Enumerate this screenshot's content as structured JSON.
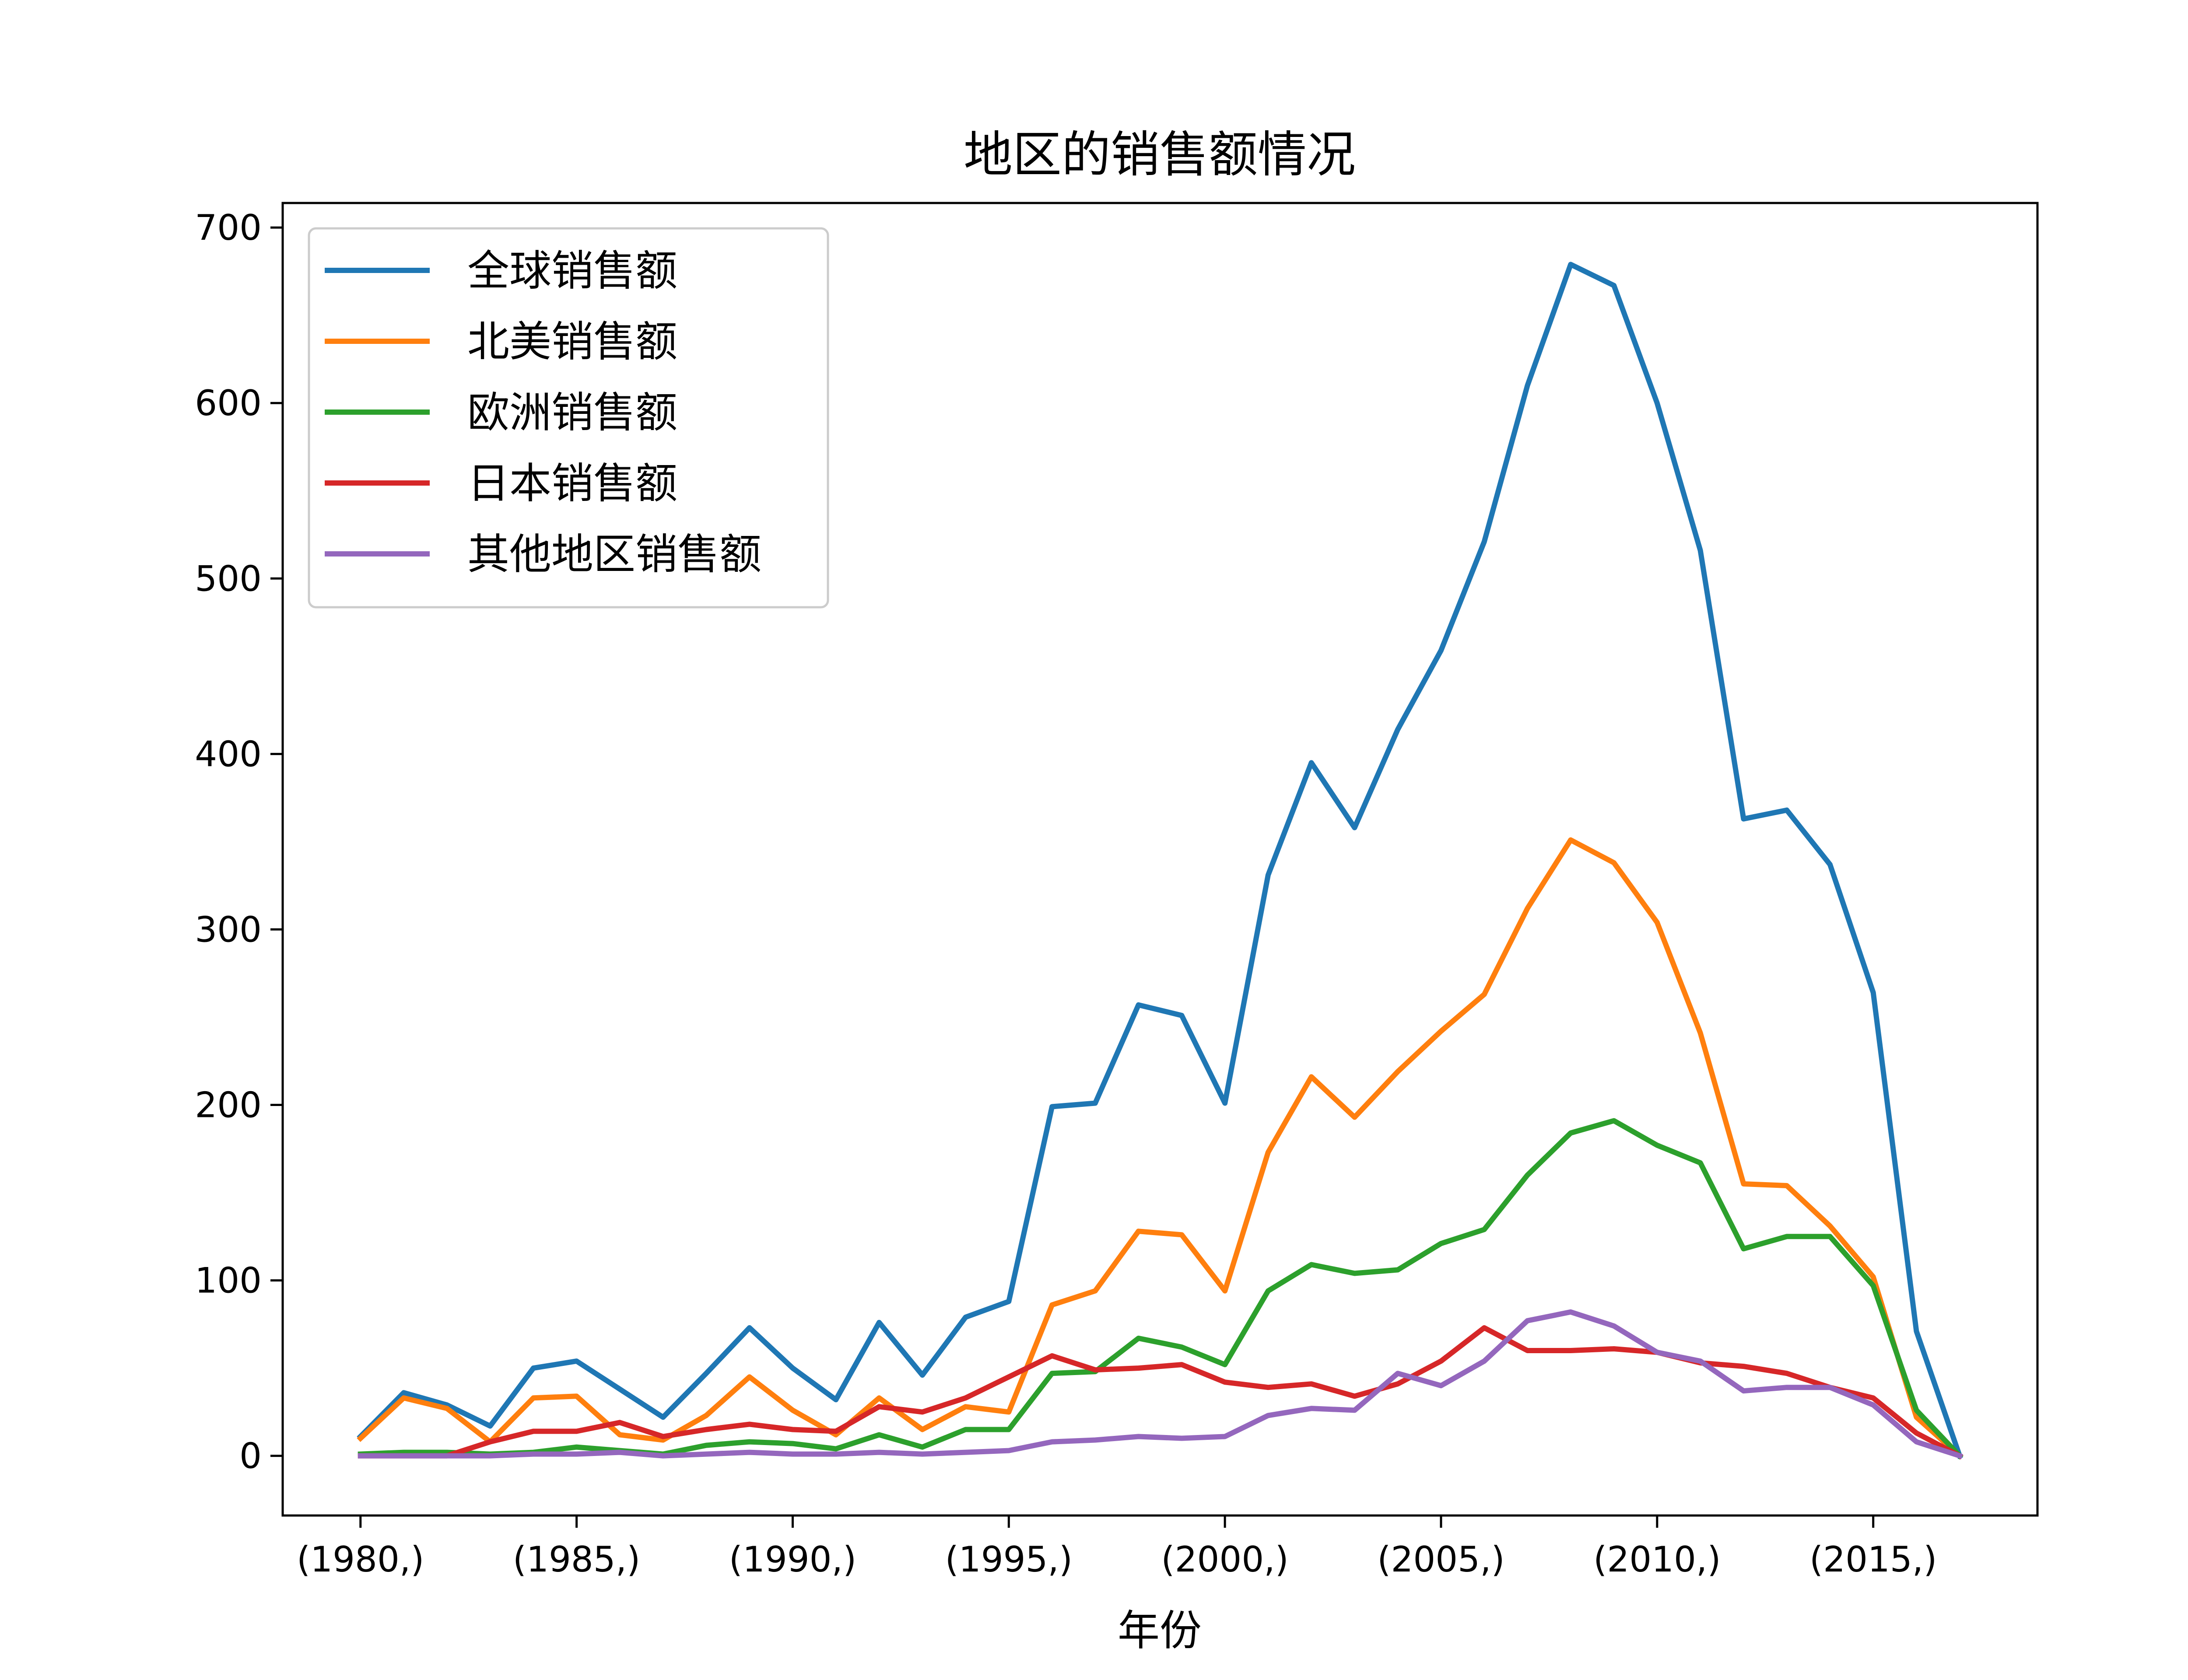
{
  "chart_data": {
    "type": "line",
    "title": "地区的销售额情况",
    "xlabel": "年份",
    "ylabel": "",
    "xlim": [
      1978.2,
      2018.8
    ],
    "ylim": [
      -34,
      714
    ],
    "xticks": [
      1980,
      1985,
      1990,
      1995,
      2000,
      2005,
      2010,
      2015
    ],
    "xtick_labels": [
      "(1980,)",
      "(1985,)",
      "(1990,)",
      "(1995,)",
      "(2000,)",
      "(2005,)",
      "(2010,)",
      "(2015,)"
    ],
    "yticks": [
      0,
      100,
      200,
      300,
      400,
      500,
      600,
      700
    ],
    "ytick_labels": [
      "0",
      "100",
      "200",
      "300",
      "400",
      "500",
      "600",
      "700"
    ],
    "legend_position": "upper-left",
    "grid": false,
    "x": [
      1980,
      1981,
      1982,
      1983,
      1984,
      1985,
      1986,
      1987,
      1988,
      1989,
      1990,
      1991,
      1992,
      1993,
      1994,
      1995,
      1996,
      1997,
      1998,
      1999,
      2000,
      2001,
      2002,
      2003,
      2004,
      2005,
      2006,
      2007,
      2008,
      2009,
      2010,
      2011,
      2012,
      2013,
      2014,
      2015,
      2016,
      2017
    ],
    "series": [
      {
        "name": "全球销售额",
        "color": "#1f77b4",
        "values": [
          11,
          36,
          29,
          17,
          50,
          54,
          38,
          22,
          47,
          73,
          50,
          32,
          76,
          46,
          79,
          88,
          199,
          201,
          257,
          251,
          201,
          331,
          395,
          358,
          414,
          459,
          521,
          610,
          679,
          667,
          600,
          516,
          363,
          368,
          337,
          264,
          71,
          0
        ]
      },
      {
        "name": "北美销售额",
        "color": "#ff7f0e",
        "values": [
          10,
          33,
          27,
          8,
          33,
          34,
          12,
          9,
          23,
          45,
          26,
          12,
          33,
          15,
          28,
          25,
          86,
          94,
          128,
          126,
          94,
          173,
          216,
          193,
          219,
          242,
          263,
          312,
          351,
          338,
          304,
          241,
          155,
          154,
          131,
          102,
          22,
          0
        ]
      },
      {
        "name": "欧洲销售额",
        "color": "#2ca02c",
        "values": [
          1,
          2,
          2,
          1,
          2,
          5,
          3,
          1,
          6,
          8,
          7,
          4,
          12,
          5,
          15,
          15,
          47,
          48,
          67,
          62,
          52,
          94,
          109,
          104,
          106,
          121,
          129,
          160,
          184,
          191,
          177,
          167,
          118,
          125,
          125,
          97,
          26,
          0
        ]
      },
      {
        "name": "日本销售额",
        "color": "#d62728",
        "values": [
          0,
          0,
          0,
          8,
          14,
          14,
          19,
          11,
          15,
          18,
          15,
          14,
          28,
          25,
          33,
          45,
          57,
          49,
          50,
          52,
          42,
          39,
          41,
          34,
          41,
          54,
          73,
          60,
          60,
          61,
          59,
          53,
          51,
          47,
          39,
          33,
          13,
          0
        ]
      },
      {
        "name": "其他地区销售额",
        "color": "#9467bd",
        "values": [
          0,
          0,
          0,
          0,
          1,
          1,
          2,
          0,
          1,
          2,
          1,
          1,
          2,
          1,
          2,
          3,
          8,
          9,
          11,
          10,
          11,
          23,
          27,
          26,
          47,
          40,
          54,
          77,
          82,
          74,
          59,
          54,
          37,
          39,
          39,
          29,
          8,
          0
        ]
      }
    ]
  }
}
